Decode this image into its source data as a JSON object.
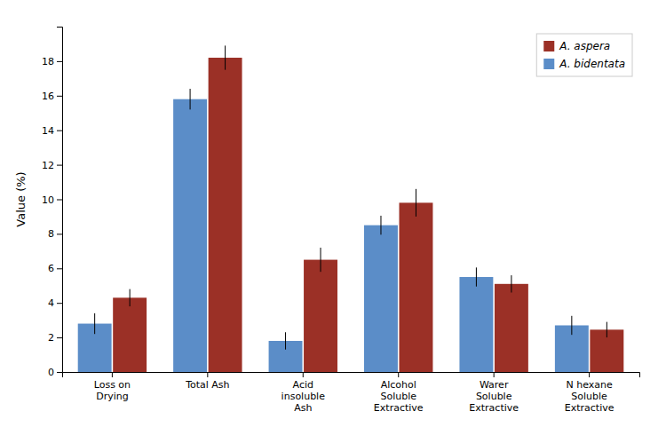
{
  "chart_data": {
    "type": "bar",
    "categories": [
      "Loss on\nDrying",
      "Total Ash",
      "Acid\ninsoluble\nAsh",
      "Alcohol\nSoluble\nExtractive",
      "Warer\nSoluble\nExtractive",
      "N hexane\nSoluble\nExtractive"
    ],
    "series": [
      {
        "name": "A. bidentata",
        "color": "#5B8DC8",
        "values": [
          2.8,
          15.8,
          1.8,
          8.5,
          5.5,
          2.7
        ],
        "errors": [
          0.6,
          0.6,
          0.5,
          0.55,
          0.55,
          0.55
        ]
      },
      {
        "name": "A. aspera",
        "color": "#9B3026",
        "values": [
          4.3,
          18.2,
          6.5,
          9.8,
          5.1,
          2.45
        ],
        "errors": [
          0.5,
          0.7,
          0.7,
          0.8,
          0.5,
          0.45
        ]
      }
    ],
    "ylabel": "Value (%)",
    "ylim": [
      0,
      20
    ],
    "yticks": [
      0,
      2,
      4,
      6,
      8,
      10,
      12,
      14,
      16,
      18
    ],
    "legend": "upper right",
    "grid": false
  }
}
